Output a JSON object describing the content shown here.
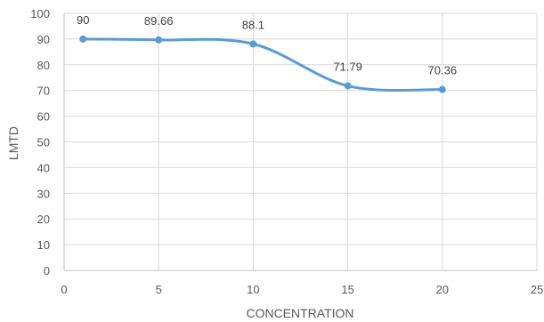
{
  "chart_data": {
    "type": "line",
    "title": "",
    "xlabel": "CONCENTRATION",
    "ylabel": "LMTD",
    "xlim": [
      0,
      25
    ],
    "ylim": [
      0,
      100
    ],
    "x_ticks": [
      0,
      5,
      10,
      15,
      20,
      25
    ],
    "y_ticks": [
      0,
      10,
      20,
      30,
      40,
      50,
      60,
      70,
      80,
      90,
      100
    ],
    "grid": true,
    "legend": "none",
    "smooth": true,
    "series": [
      {
        "color": "#5b9bd5",
        "points": [
          {
            "x": 1,
            "y": 90,
            "label": "90"
          },
          {
            "x": 5,
            "y": 89.66,
            "label": "89.66"
          },
          {
            "x": 10,
            "y": 88.1,
            "label": "88.1"
          },
          {
            "x": 15,
            "y": 71.79,
            "label": "71.79"
          },
          {
            "x": 20,
            "y": 70.36,
            "label": "70.36"
          }
        ]
      }
    ]
  }
}
